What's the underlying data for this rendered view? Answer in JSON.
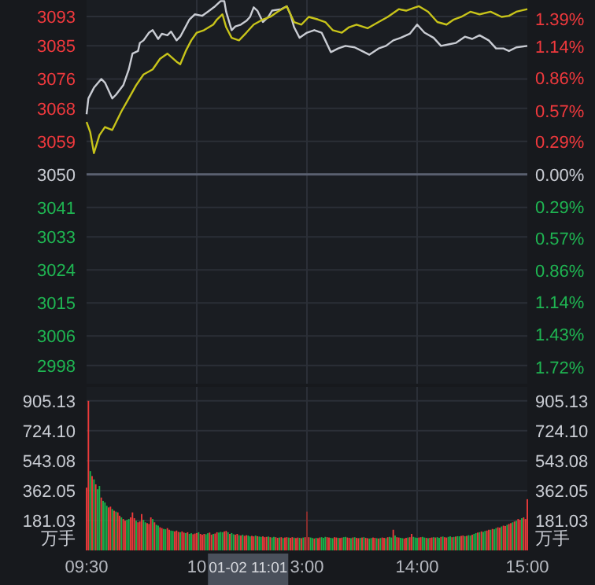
{
  "chart_data": [
    {
      "type": "line",
      "categories": [
        null,
        null,
        null,
        null,
        null,
        null,
        null,
        null,
        null,
        null,
        null,
        null,
        null,
        null,
        null,
        null,
        null,
        null,
        null,
        null,
        null,
        null,
        null,
        null,
        null,
        null,
        null,
        null,
        null,
        null,
        null,
        null,
        null,
        null,
        null,
        null,
        null,
        null,
        null,
        null,
        null,
        null,
        null,
        null,
        null,
        null,
        null,
        null,
        null,
        null,
        null,
        null,
        null,
        null,
        null,
        null,
        null,
        null,
        null,
        null,
        null,
        null,
        null,
        null,
        null,
        null,
        null,
        null,
        null,
        null,
        null,
        null,
        null,
        null,
        null,
        null,
        null,
        null,
        null,
        null,
        null,
        null,
        null,
        null,
        null,
        null,
        null,
        null,
        null,
        null,
        null,
        null,
        null,
        null,
        null,
        null,
        null,
        null,
        null,
        null,
        null,
        null,
        null,
        null,
        null,
        null,
        null,
        null,
        null,
        null,
        null,
        null,
        null,
        null,
        null,
        null,
        null,
        null,
        null,
        null,
        null,
        null,
        null,
        null,
        null,
        null,
        null,
        null,
        null,
        null,
        null,
        null,
        null,
        null,
        null,
        null,
        null,
        null,
        null,
        null,
        null,
        null,
        null,
        null,
        null,
        null,
        null,
        null,
        null,
        null,
        null,
        null,
        null,
        null,
        null,
        null,
        null,
        null,
        null,
        null,
        null,
        null,
        null,
        null,
        null,
        null,
        null,
        null,
        null,
        null,
        null,
        null,
        null,
        null,
        null,
        null,
        null,
        null,
        null,
        null,
        null,
        null,
        null,
        null,
        null,
        null,
        null,
        null,
        null,
        null,
        null,
        null,
        null,
        null,
        null,
        null,
        null,
        null,
        null,
        null,
        null,
        null,
        null,
        null,
        null,
        null,
        null,
        null,
        null,
        null,
        null,
        null,
        null,
        null,
        null,
        null,
        null,
        null,
        null,
        null,
        null,
        null,
        null,
        null,
        null,
        null,
        null,
        null,
        null,
        null,
        null,
        null,
        null,
        null,
        null,
        null,
        null,
        null,
        null,
        null,
        null
      ],
      "ylim": [
        2993,
        3097.5
      ],
      "yticks": [
        3093,
        3085,
        3076,
        3068,
        3059,
        3050,
        3041,
        3033,
        3024,
        3015,
        3006,
        2998
      ],
      "y2lim": [
        -1.869,
        1.557
      ],
      "y2ticks": [
        {
          "value": 1.39,
          "label": "1.39%"
        },
        {
          "value": 1.14,
          "label": "1.14%"
        },
        {
          "value": 0.86,
          "label": "0.86%"
        },
        {
          "value": 0.57,
          "label": "0.57%"
        },
        {
          "value": 0.29,
          "label": "0.29%"
        },
        {
          "value": 0,
          "label": "0.00%"
        },
        {
          "value": -0.29,
          "label": "0.29%"
        },
        {
          "value": -0.57,
          "label": "0.57%"
        },
        {
          "value": -0.86,
          "label": "0.86%"
        },
        {
          "value": -1.14,
          "label": "1.14%"
        },
        {
          "value": -1.43,
          "label": "1.43%"
        },
        {
          "value": -1.72,
          "label": "1.72%"
        }
      ],
      "tick_labels": "y",
      "grid": true,
      "ref_lines": [
        {
          "axis": "y",
          "value": 3050,
          "color": "#5a6070"
        }
      ],
      "series": [
        {
          "type": "line",
          "color": "#c9ccd3",
          "values": [
            3066.4,
            3070.7,
            null,
            null,
            3073.6,
            null,
            null,
            null,
            3076.0,
            null,
            3075.0,
            null,
            null,
            null,
            3070.7,
            null,
            3071.7,
            null,
            null,
            null,
            3074.3,
            null,
            null,
            3078.6,
            null,
            3082.9,
            null,
            null,
            3083.6,
            3085.8,
            null,
            3086.5,
            null,
            null,
            3088.6,
            null,
            3089.3,
            null,
            null,
            3086.9,
            null,
            3088.3,
            null,
            null,
            3087.9,
            null,
            3088.9,
            null,
            null,
            3086.5,
            null,
            3087.5,
            null,
            null,
            3090.3,
            null,
            3092.2,
            null,
            null,
            3093.6,
            null,
            null,
            null,
            3093.2,
            null,
            null,
            3094.3,
            null,
            null,
            null,
            3095.8,
            null,
            null,
            3097.2,
            null,
            3097.2,
            3094.3,
            null,
            null,
            3089.3,
            null,
            3090.3,
            null,
            null,
            3090.8,
            null,
            null,
            3091.8,
            null,
            3092.9,
            null,
            3095.5,
            null,
            3094.6,
            null,
            null,
            3091.5,
            null,
            null,
            3092.9,
            null,
            3094.6,
            null,
            null,
            null,
            null,
            3095.0,
            null,
            null,
            3095.8,
            null,
            3093.6,
            null,
            3090.1,
            null,
            null,
            3087.2,
            null,
            null,
            null,
            3088.6,
            null,
            null,
            null,
            3089.3,
            null,
            null,
            null,
            3088.6,
            null,
            3086.5,
            null,
            null,
            3083.3,
            null,
            null,
            null,
            3084.3,
            null,
            null,
            null,
            3085.0,
            null,
            null,
            null,
            null,
            3084.6,
            null,
            null,
            null,
            3083.6,
            null,
            null,
            null,
            3082.6,
            null,
            null,
            null,
            null,
            3084.3,
            null,
            null,
            null,
            3085.0,
            null,
            null,
            null,
            3086.5,
            null,
            null,
            null,
            3087.2,
            null,
            null,
            null,
            null,
            3088.3,
            null,
            null,
            null,
            3090.8,
            null,
            null,
            null,
            3088.6,
            null,
            null,
            null,
            null,
            3087.2,
            null,
            null,
            null,
            3085.0,
            null,
            null,
            null,
            3085.4,
            null,
            null,
            null,
            3085.8,
            null,
            null,
            null,
            null,
            3087.5,
            null,
            null,
            null,
            3086.9,
            null,
            null,
            null,
            3087.9,
            null,
            null,
            null,
            null,
            3086.5,
            null,
            null,
            null,
            3084.3,
            null,
            null,
            null,
            3084.3,
            null,
            null,
            3083.6,
            null,
            null,
            null,
            3084.6,
            null,
            null,
            null,
            null,
            null,
            3085.0
          ]
        },
        {
          "color": "#c8c41a",
          "values": [
            3064.3,
            null,
            3061.5,
            null,
            3055.8,
            null,
            null,
            3060.7,
            null,
            null,
            3062.9,
            null,
            null,
            null,
            3062.1,
            null,
            null,
            null,
            null,
            3067.2,
            null,
            null,
            null,
            3070.7,
            null,
            null,
            null,
            3074.3,
            null,
            null,
            null,
            3077.2,
            null,
            null,
            null,
            null,
            3078.6,
            null,
            null,
            null,
            3081.5,
            null,
            null,
            null,
            3082.9,
            null,
            null,
            null,
            null,
            3080.7,
            null,
            3080.0,
            null,
            null,
            3083.6,
            null,
            null,
            3086.5,
            null,
            null,
            3088.6,
            null,
            null,
            null,
            3089.3,
            null,
            null,
            null,
            null,
            3090.8,
            null,
            3092.2,
            null,
            null,
            3093.6,
            null,
            3090.1,
            null,
            null,
            3087.2,
            null,
            null,
            null,
            3086.5,
            null,
            null,
            null,
            3088.6,
            null,
            null,
            null,
            3090.8,
            null,
            null,
            null,
            null,
            3092.2,
            null,
            null,
            null,
            3092.9,
            null,
            null,
            null,
            3094.3,
            null,
            null,
            null,
            null,
            3095.8,
            null,
            null,
            null,
            3091.5,
            null,
            null,
            null,
            3090.8,
            null,
            null,
            null,
            3092.9,
            null,
            null,
            null,
            null,
            3092.2,
            null,
            null,
            null,
            3091.5,
            null,
            null,
            null,
            3089.3,
            null,
            null,
            null,
            null,
            3088.6,
            null,
            null,
            null,
            3090.1,
            null,
            null,
            null,
            3090.8,
            null,
            null,
            null,
            null,
            null,
            3089.8,
            null,
            null,
            null,
            null,
            null,
            3091.5,
            null,
            null,
            null,
            null,
            3092.9,
            null,
            null,
            null,
            null,
            null,
            3095.0,
            null,
            null,
            null,
            3094.6,
            null,
            null,
            null,
            null,
            3095.5,
            null,
            3095.8,
            null,
            null,
            null,
            null,
            3094.3,
            null,
            null,
            null,
            null,
            3091.5,
            null,
            null,
            null,
            null,
            3090.8,
            null,
            null,
            null,
            3092.2,
            null,
            null,
            null,
            3092.9,
            null,
            null,
            null,
            null,
            3094.3,
            null,
            null,
            null,
            null,
            3093.6,
            null,
            null,
            null,
            null,
            null,
            3094.3,
            null,
            null,
            null,
            null,
            null,
            3092.9,
            null,
            null,
            null,
            3093.2,
            null,
            null,
            null,
            3094.3,
            null,
            null,
            null,
            null,
            null,
            3095.0
          ]
        }
      ]
    },
    {
      "type": "bar",
      "ylabel": "万手",
      "y2label": "万手",
      "categories": [
        "09:30",
        null,
        null,
        null,
        null,
        null,
        null,
        null,
        null,
        null,
        null,
        null,
        null,
        null,
        null,
        null,
        null,
        null,
        null,
        null,
        null,
        null,
        null,
        null,
        null,
        null,
        null,
        null,
        null,
        null,
        null,
        null,
        null,
        null,
        null,
        null,
        null,
        null,
        null,
        null,
        null,
        null,
        null,
        null,
        null,
        null,
        null,
        null,
        null,
        null,
        null,
        null,
        null,
        null,
        null,
        null,
        null,
        null,
        null,
        null,
        "10",
        null,
        null,
        null,
        null,
        null,
        null,
        null,
        null,
        null,
        null,
        null,
        null,
        null,
        null,
        null,
        null,
        null,
        null,
        null,
        null,
        null,
        null,
        null,
        null,
        null,
        null,
        null,
        null,
        null,
        null,
        null,
        null,
        null,
        null,
        null,
        null,
        null,
        null,
        null,
        null,
        null,
        null,
        null,
        null,
        null,
        null,
        null,
        null,
        null,
        null,
        null,
        null,
        null,
        null,
        null,
        null,
        null,
        null,
        null,
        "3:00",
        null,
        null,
        null,
        null,
        null,
        null,
        null,
        null,
        null,
        null,
        null,
        null,
        null,
        null,
        null,
        null,
        null,
        null,
        null,
        null,
        null,
        null,
        null,
        null,
        null,
        null,
        null,
        null,
        null,
        null,
        null,
        null,
        null,
        null,
        null,
        null,
        null,
        null,
        null,
        null,
        null,
        null,
        null,
        null,
        null,
        null,
        null,
        null,
        null,
        null,
        null,
        null,
        null,
        null,
        null,
        null,
        null,
        null,
        null,
        "14:00",
        null,
        null,
        null,
        null,
        null,
        null,
        null,
        null,
        null,
        null,
        null,
        null,
        null,
        null,
        null,
        null,
        null,
        null,
        null,
        null,
        null,
        null,
        null,
        null,
        null,
        null,
        null,
        null,
        null,
        null,
        null,
        null,
        null,
        null,
        null,
        null,
        null,
        null,
        null,
        null,
        null,
        null,
        null,
        null,
        null,
        null,
        null,
        null,
        null,
        null,
        null,
        null,
        null,
        null,
        null,
        null,
        null,
        null,
        null,
        "15:00"
      ],
      "ylim": [
        0,
        990
      ],
      "yticks": [
        {
          "value": 181.03,
          "label": "181.03"
        },
        {
          "value": 362.05,
          "label": "362.05"
        },
        {
          "value": 543.08,
          "label": "543.08"
        },
        {
          "value": 724.1,
          "label": "724.10"
        },
        {
          "value": 905.13,
          "label": "905.13"
        }
      ],
      "y2lim": [
        0,
        990
      ],
      "y2ticks": [
        {
          "value": 181.03,
          "label": "181.03"
        },
        {
          "value": 362.05,
          "label": "362.05"
        },
        {
          "value": 543.08,
          "label": "543.08"
        },
        {
          "value": 724.1,
          "label": "724.10"
        },
        {
          "value": 905.13,
          "label": "905.13"
        }
      ],
      "grid": true,
      "annotations": [
        "01-02 11:01"
      ],
      "values": [
        380,
        905,
        480,
        450,
        430,
        400,
        370,
        390,
        320,
        300,
        290,
        270,
        260,
        265,
        250,
        240,
        235,
        230,
        210,
        200,
        190,
        180,
        185,
        190,
        200,
        230,
        195,
        180,
        170,
        175,
        220,
        185,
        170,
        165,
        160,
        200,
        190,
        170,
        155,
        150,
        140,
        135,
        130,
        128,
        135,
        125,
        120,
        118,
        115,
        120,
        112,
        110,
        115,
        108,
        105,
        110,
        100,
        104,
        98,
        102,
        105,
        110,
        100,
        95,
        100,
        98,
        104,
        108,
        95,
        100,
        102,
        110,
        108,
        112,
        110,
        115,
        118,
        110,
        100,
        105,
        98,
        95,
        100,
        92,
        90,
        95,
        88,
        92,
        90,
        85,
        88,
        85,
        90,
        86,
        84,
        82,
        85,
        80,
        82,
        84,
        80,
        78,
        82,
        80,
        76,
        78,
        80,
        75,
        78,
        80,
        78,
        76,
        80,
        77,
        75,
        78,
        76,
        74,
        78,
        80,
        235,
        80,
        78,
        75,
        72,
        76,
        74,
        78,
        80,
        76,
        82,
        80,
        78,
        76,
        74,
        80,
        78,
        76,
        75,
        77,
        80,
        82,
        78,
        76,
        74,
        78,
        80,
        76,
        74,
        76,
        78,
        80,
        76,
        74,
        72,
        75,
        78,
        76,
        74,
        72,
        75,
        78,
        76,
        74,
        80,
        82,
        78,
        125,
        90,
        80,
        78,
        76,
        74,
        72,
        76,
        78,
        80,
        100,
        82,
        78,
        76,
        78,
        80,
        82,
        78,
        76,
        74,
        76,
        78,
        80,
        78,
        80,
        76,
        82,
        84,
        80,
        78,
        82,
        85,
        80,
        82,
        84,
        86,
        85,
        88,
        90,
        86,
        88,
        92,
        90,
        95,
        100,
        105,
        108,
        110,
        115,
        112,
        118,
        120,
        125,
        125,
        130,
        128,
        135,
        140,
        138,
        145,
        150,
        148,
        155,
        160,
        165,
        170,
        175,
        180,
        190,
        185,
        195,
        200,
        190,
        310
      ],
      "colors": [
        "#ef3b3b",
        "#ef3b3b",
        "#19b34a",
        "#ef3b3b",
        "#19b34a",
        "#ef3b3b",
        "#19b34a",
        "#19b34a",
        "#ef3b3b",
        "#19b34a",
        "#19b34a",
        "#19b34a",
        "#ef3b3b",
        "#ef3b3b",
        "#19b34a",
        "#ef3b3b",
        "#19b34a",
        "#ef3b3b",
        "#ef3b3b",
        "#19b34a",
        "#ef3b3b",
        "#ef3b3b",
        "#19b34a",
        "#19b34a",
        "#ef3b3b",
        "#ef3b3b",
        "#ef3b3b",
        "#19b34a",
        "#ef3b3b",
        "#ef3b3b",
        "#ef3b3b",
        "#19b34a",
        "#19b34a",
        "#ef3b3b",
        "#ef3b3b",
        "#ef3b3b",
        "#19b34a",
        "#ef3b3b",
        "#19b34a",
        "#19b34a",
        "#ef3b3b",
        "#ef3b3b",
        "#19b34a",
        "#19b34a",
        "#ef3b3b",
        "#ef3b3b",
        "#19b34a",
        "#19b34a",
        "#ef3b3b",
        "#ef3b3b",
        "#ef3b3b",
        "#19b34a",
        "#ef3b3b",
        "#ef3b3b",
        "#19b34a",
        "#ef3b3b",
        "#19b34a",
        "#19b34a",
        "#ef3b3b",
        "#ef3b3b",
        "#ef3b3b",
        "#19b34a",
        "#ef3b3b",
        "#ef3b3b",
        "#ef3b3b",
        "#19b34a",
        "#19b34a",
        "#ef3b3b",
        "#ef3b3b",
        "#19b34a",
        "#ef3b3b",
        "#ef3b3b",
        "#19b34a",
        "#19b34a",
        "#19b34a",
        "#ef3b3b",
        "#ef3b3b",
        "#19b34a",
        "#ef3b3b",
        "#19b34a",
        "#19b34a",
        "#ef3b3b",
        "#ef3b3b",
        "#19b34a",
        "#ef3b3b",
        "#19b34a",
        "#ef3b3b",
        "#ef3b3b",
        "#19b34a",
        "#19b34a",
        "#ef3b3b",
        "#ef3b3b",
        "#19b34a",
        "#ef3b3b",
        "#19b34a",
        "#19b34a",
        "#ef3b3b",
        "#ef3b3b",
        "#ef3b3b",
        "#19b34a",
        "#ef3b3b",
        "#19b34a",
        "#19b34a",
        "#ef3b3b",
        "#ef3b3b",
        "#19b34a",
        "#ef3b3b",
        "#19b34a",
        "#ef3b3b",
        "#ef3b3b",
        "#19b34a",
        "#ef3b3b",
        "#ef3b3b",
        "#19b34a",
        "#ef3b3b",
        "#ef3b3b",
        "#19b34a",
        "#ef3b3b",
        "#19b34a",
        "#ef3b3b",
        "#8e2e2e",
        "#ef3b3b",
        "#19b34a",
        "#19b34a",
        "#ef3b3b",
        "#19b34a",
        "#ef3b3b",
        "#ef3b3b",
        "#19b34a",
        "#19b34a",
        "#19b34a",
        "#ef3b3b",
        "#ef3b3b",
        "#19b34a",
        "#19b34a",
        "#ef3b3b",
        "#ef3b3b",
        "#19b34a",
        "#ef3b3b",
        "#ef3b3b",
        "#19b34a",
        "#19b34a",
        "#ef3b3b",
        "#ef3b3b",
        "#19b34a",
        "#ef3b3b",
        "#19b34a",
        "#ef3b3b",
        "#ef3b3b",
        "#19b34a",
        "#ef3b3b",
        "#19b34a",
        "#ef3b3b",
        "#ef3b3b",
        "#19b34a",
        "#19b34a",
        "#ef3b3b",
        "#ef3b3b",
        "#19b34a",
        "#ef3b3b",
        "#19b34a",
        "#ef3b3b",
        "#ef3b3b",
        "#19b34a",
        "#ef3b3b",
        "#19b34a",
        "#19b34a",
        "#ef3b3b",
        "#19b34a",
        "#ef3b3b",
        "#ef3b3b",
        "#19b34a",
        "#19b34a",
        "#ef3b3b",
        "#ef3b3b",
        "#19b34a",
        "#ef3b3b",
        "#ef3b3b",
        "#19b34a",
        "#19b34a",
        "#19b34a",
        "#ef3b3b",
        "#ef3b3b",
        "#19b34a",
        "#19b34a",
        "#ef3b3b",
        "#19b34a",
        "#ef3b3b",
        "#ef3b3b",
        "#19b34a",
        "#ef3b3b",
        "#19b34a",
        "#19b34a",
        "#ef3b3b",
        "#19b34a",
        "#ef3b3b",
        "#ef3b3b",
        "#19b34a",
        "#19b34a",
        "#ef3b3b",
        "#19b34a",
        "#ef3b3b",
        "#19b34a",
        "#19b34a",
        "#ef3b3b",
        "#ef3b3b",
        "#19b34a",
        "#ef3b3b",
        "#19b34a",
        "#19b34a",
        "#ef3b3b",
        "#19b34a",
        "#19b34a",
        "#ef3b3b",
        "#19b34a",
        "#ef3b3b",
        "#19b34a",
        "#19b34a",
        "#ef3b3b",
        "#ef3b3b",
        "#19b34a",
        "#ef3b3b",
        "#19b34a",
        "#19b34a",
        "#ef3b3b",
        "#ef3b3b",
        "#19b34a",
        "#ef3b3b",
        "#ef3b3b",
        "#19b34a",
        "#ef3b3b",
        "#ef3b3b",
        "#19b34a",
        "#ef3b3b",
        "#19b34a",
        "#ef3b3b",
        "#ef3b3b",
        "#19b34a",
        "#ef3b3b",
        "#ef3b3b",
        "#ef3b3b"
      ]
    }
  ]
}
